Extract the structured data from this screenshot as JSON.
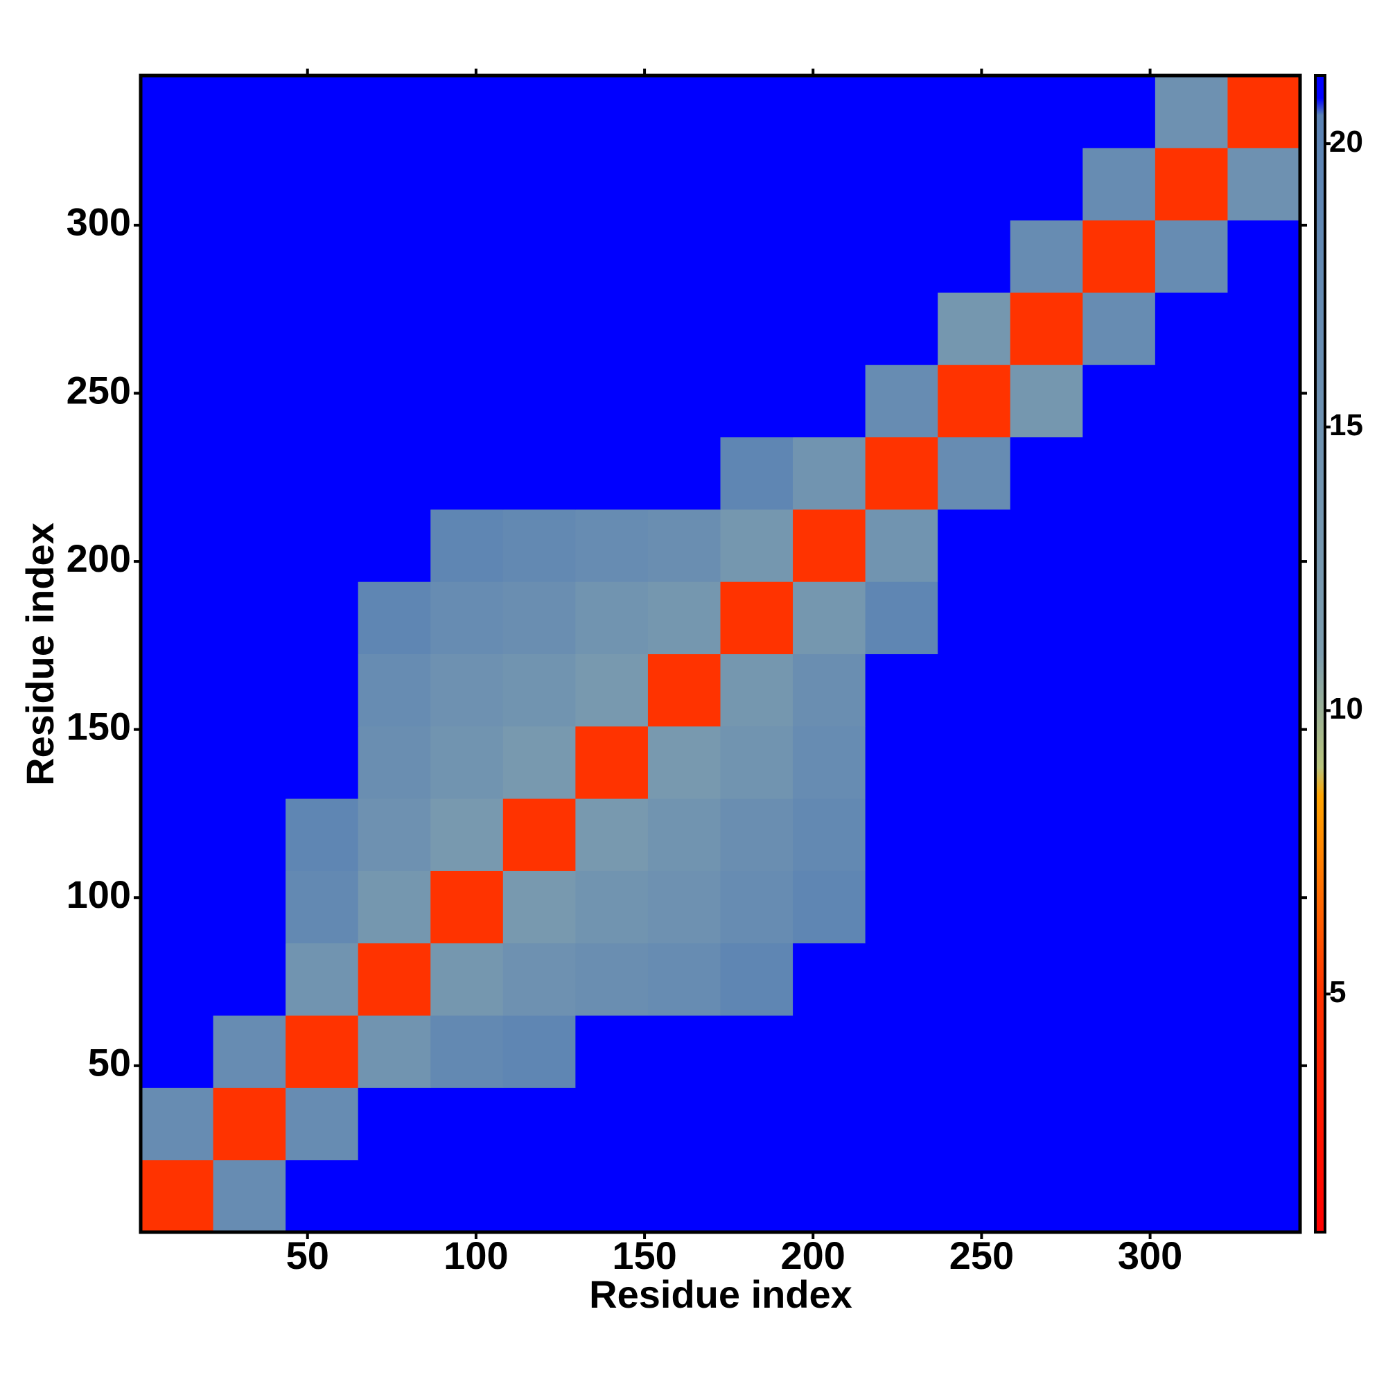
{
  "chart_data": {
    "type": "heatmap",
    "x_label": "Residue index",
    "y_label": "Residue index",
    "xlim": [
      0.5,
      344.5
    ],
    "ylim": [
      0.5,
      344.5
    ],
    "xticks": [
      50,
      100,
      150,
      200,
      250,
      300
    ],
    "yticks": [
      50,
      100,
      150,
      200,
      250,
      300
    ],
    "x_bins": [
      0.5,
      22,
      43.5,
      65,
      86.5,
      108,
      129.5,
      151,
      172.5,
      194,
      215.5,
      237,
      258.5,
      280,
      301.5,
      323,
      344.5
    ],
    "y_bins": [
      0.5,
      22,
      43.5,
      65,
      86.5,
      108,
      129.5,
      151,
      172.5,
      194,
      215.5,
      237,
      258.5,
      280,
      301.5,
      323,
      344.5
    ],
    "z": [
      [
        5,
        17,
        21,
        21,
        21,
        21,
        21,
        21,
        21,
        21,
        21,
        21,
        21,
        21,
        21,
        21
      ],
      [
        17,
        5,
        17,
        21,
        21,
        21,
        21,
        21,
        21,
        21,
        21,
        21,
        21,
        21,
        21,
        21
      ],
      [
        21,
        17,
        5,
        14,
        18,
        19,
        21,
        21,
        21,
        21,
        21,
        21,
        21,
        21,
        21,
        21
      ],
      [
        21,
        21,
        14,
        5,
        13,
        15,
        16,
        17,
        19,
        21,
        21,
        21,
        21,
        21,
        21,
        21
      ],
      [
        21,
        21,
        18,
        13,
        5,
        12,
        14,
        15,
        17,
        19,
        21,
        21,
        21,
        21,
        21,
        21
      ],
      [
        21,
        21,
        19,
        15,
        12,
        5,
        12,
        14,
        16,
        18,
        21,
        21,
        21,
        21,
        21,
        21
      ],
      [
        21,
        21,
        21,
        16,
        14,
        12,
        5,
        12,
        14,
        17,
        21,
        21,
        21,
        21,
        21,
        21
      ],
      [
        21,
        21,
        21,
        17,
        15,
        14,
        12,
        5,
        13,
        16,
        21,
        21,
        21,
        21,
        21,
        21
      ],
      [
        21,
        21,
        21,
        19,
        17,
        16,
        14,
        13,
        5,
        13,
        19,
        21,
        21,
        21,
        21,
        21
      ],
      [
        21,
        21,
        21,
        21,
        19,
        18,
        17,
        16,
        13,
        5,
        14,
        21,
        21,
        21,
        21,
        21
      ],
      [
        21,
        21,
        21,
        21,
        21,
        21,
        21,
        21,
        19,
        14,
        5,
        17,
        21,
        21,
        21,
        21
      ],
      [
        21,
        21,
        21,
        21,
        21,
        21,
        21,
        21,
        21,
        21,
        17,
        5,
        13,
        21,
        21,
        21
      ],
      [
        21,
        21,
        21,
        21,
        21,
        21,
        21,
        21,
        21,
        21,
        21,
        13,
        5,
        17,
        21,
        21
      ],
      [
        21,
        21,
        21,
        21,
        21,
        21,
        21,
        21,
        21,
        21,
        21,
        21,
        17,
        5,
        17,
        21
      ],
      [
        21,
        21,
        21,
        21,
        21,
        21,
        21,
        21,
        21,
        21,
        21,
        21,
        21,
        17,
        5,
        15
      ],
      [
        21,
        21,
        21,
        21,
        21,
        21,
        21,
        21,
        21,
        21,
        21,
        21,
        21,
        21,
        15,
        5
      ]
    ],
    "clim": [
      0.8,
      21.2
    ],
    "cticks": [
      5,
      10,
      15,
      20
    ],
    "colorscale": [
      {
        "value": 0.8,
        "color": "#ff0000"
      },
      {
        "value": 5,
        "color": "#ff3300"
      },
      {
        "value": 8.5,
        "color": "#ffa500"
      },
      {
        "value": 9,
        "color": "#b8c47c"
      },
      {
        "value": 11,
        "color": "#7c9cae"
      },
      {
        "value": 20.5,
        "color": "#5a82b4"
      },
      {
        "value": 20.8,
        "color": "#0000ff"
      },
      {
        "value": 21.2,
        "color": "#0000ff"
      }
    ]
  }
}
